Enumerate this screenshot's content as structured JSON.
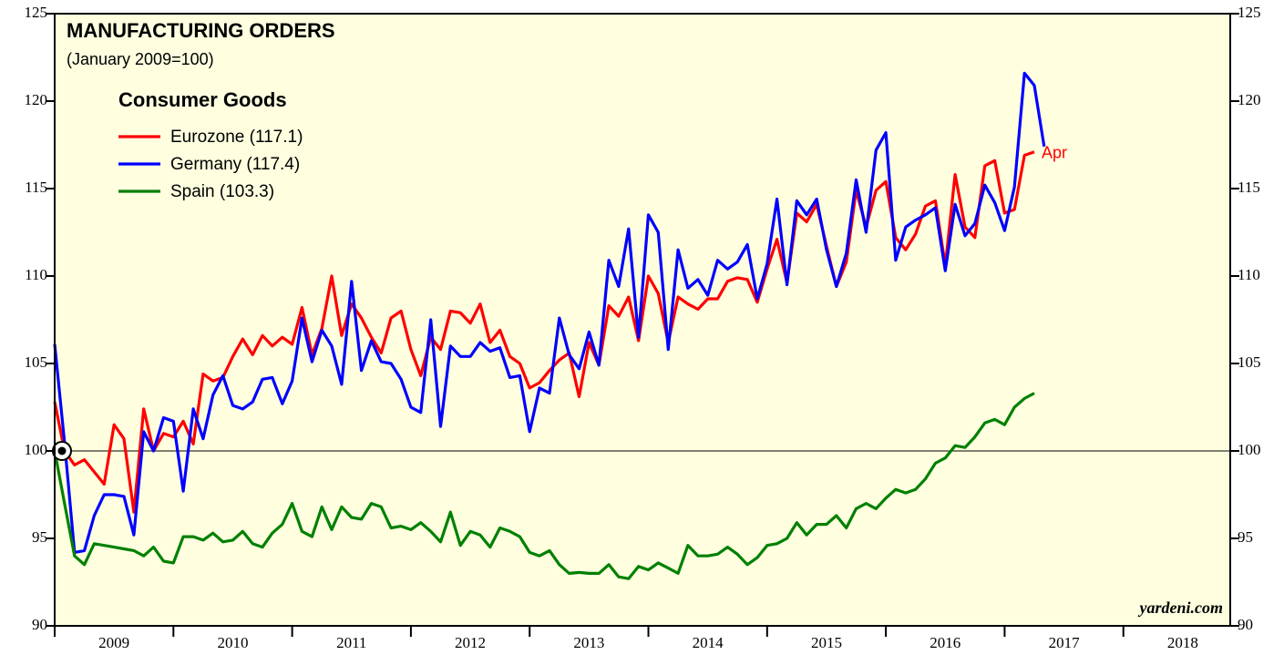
{
  "chart_data": {
    "type": "line",
    "title": "MANUFACTURING ORDERS",
    "subtitle": "(January 2009=100)",
    "legend_title": "Consumer Goods",
    "annotation": "Apr",
    "source": "yardeni.com",
    "reference_line": 100,
    "x": [
      2009,
      2009.083,
      2009.167,
      2009.25,
      2009.333,
      2009.417,
      2009.5,
      2009.583,
      2009.667,
      2009.75,
      2009.833,
      2009.917,
      2010,
      2010.083,
      2010.167,
      2010.25,
      2010.333,
      2010.417,
      2010.5,
      2010.583,
      2010.667,
      2010.75,
      2010.833,
      2010.917,
      2011,
      2011.083,
      2011.167,
      2011.25,
      2011.333,
      2011.417,
      2011.5,
      2011.583,
      2011.667,
      2011.75,
      2011.833,
      2011.917,
      2012,
      2012.083,
      2012.167,
      2012.25,
      2012.333,
      2012.417,
      2012.5,
      2012.583,
      2012.667,
      2012.75,
      2012.833,
      2012.917,
      2013,
      2013.083,
      2013.167,
      2013.25,
      2013.333,
      2013.417,
      2013.5,
      2013.583,
      2013.667,
      2013.75,
      2013.833,
      2013.917,
      2014,
      2014.083,
      2014.167,
      2014.25,
      2014.333,
      2014.417,
      2014.5,
      2014.583,
      2014.667,
      2014.75,
      2014.833,
      2014.917,
      2015,
      2015.083,
      2015.167,
      2015.25,
      2015.333,
      2015.417,
      2015.5,
      2015.583,
      2015.667,
      2015.75,
      2015.833,
      2015.917,
      2016,
      2016.083,
      2016.167,
      2016.25,
      2016.333,
      2016.417,
      2016.5,
      2016.583,
      2016.667,
      2016.75,
      2016.833,
      2016.917,
      2017,
      2017.083,
      2017.167,
      2017.25,
      2017.333
    ],
    "series": [
      {
        "name": "Eurozone (117.1)",
        "color": "#ff0000",
        "values": [
          102.8,
          100.0,
          99.2,
          99.5,
          98.8,
          98.1,
          101.5,
          100.7,
          96.5,
          102.4,
          100.0,
          101.0,
          100.8,
          101.7,
          100.4,
          104.4,
          104.0,
          104.2,
          105.4,
          106.4,
          105.5,
          106.6,
          106.0,
          106.5,
          106.1,
          108.2,
          105.5,
          107.0,
          110.0,
          106.6,
          108.4,
          107.6,
          106.5,
          105.6,
          107.6,
          108.0,
          105.8,
          104.3,
          106.5,
          105.8,
          108.0,
          107.9,
          107.3,
          108.4,
          106.2,
          106.9,
          105.4,
          105.0,
          103.6,
          103.9,
          104.6,
          105.2,
          105.6,
          103.1,
          106.2,
          104.9,
          108.3,
          107.7,
          108.8,
          106.3,
          110.0,
          109.0,
          106.2,
          108.8,
          108.4,
          108.1,
          108.7,
          108.7,
          109.7,
          109.9,
          109.8,
          108.5,
          110.4,
          112.1,
          109.6,
          113.6,
          113.1,
          114.1,
          111.7,
          109.4,
          110.8,
          114.9,
          112.8,
          114.9,
          115.4,
          112.2,
          111.5,
          112.4,
          114.0,
          114.3,
          110.6,
          115.8,
          112.8,
          112.2,
          116.3,
          116.6,
          113.6,
          113.8,
          116.9,
          117.1,
          null
        ]
      },
      {
        "name": "Germany (117.4)",
        "color": "#0000ff",
        "values": [
          106.1,
          100.5,
          94.2,
          94.3,
          96.3,
          97.5,
          97.5,
          97.4,
          95.2,
          101.1,
          100.0,
          101.9,
          101.7,
          97.7,
          102.4,
          100.7,
          103.2,
          104.3,
          102.6,
          102.4,
          102.8,
          104.1,
          104.2,
          102.7,
          104.0,
          107.6,
          105.1,
          106.9,
          106.0,
          103.8,
          109.7,
          104.6,
          106.3,
          105.1,
          105.0,
          104.1,
          102.5,
          102.2,
          107.5,
          101.4,
          106.0,
          105.4,
          105.4,
          106.2,
          105.7,
          105.9,
          104.2,
          104.3,
          101.1,
          103.6,
          103.3,
          107.6,
          105.5,
          104.7,
          106.8,
          104.9,
          110.9,
          109.4,
          112.7,
          106.5,
          113.5,
          112.5,
          105.8,
          111.5,
          109.3,
          109.8,
          108.9,
          110.9,
          110.4,
          110.8,
          111.8,
          108.7,
          110.7,
          114.4,
          109.5,
          114.3,
          113.5,
          114.4,
          111.5,
          109.4,
          111.3,
          115.5,
          112.5,
          117.2,
          118.2,
          110.9,
          112.8,
          113.2,
          113.5,
          113.9,
          110.3,
          114.1,
          112.3,
          113.0,
          115.2,
          114.2,
          112.6,
          115.1,
          121.6,
          120.9,
          117.4
        ]
      },
      {
        "name": "Spain (103.3)",
        "color": "#008000",
        "values": [
          100.0,
          97.0,
          94.0,
          93.5,
          94.7,
          94.6,
          94.5,
          94.4,
          94.3,
          94.0,
          94.5,
          93.7,
          93.6,
          95.1,
          95.1,
          94.9,
          95.3,
          94.8,
          94.9,
          95.4,
          94.7,
          94.5,
          95.3,
          95.8,
          97.0,
          95.4,
          95.1,
          96.8,
          95.5,
          96.8,
          96.2,
          96.1,
          97.0,
          96.8,
          95.6,
          95.7,
          95.5,
          95.9,
          95.4,
          94.8,
          96.5,
          94.6,
          95.4,
          95.2,
          94.5,
          95.6,
          95.4,
          95.1,
          94.2,
          94.0,
          94.3,
          93.5,
          93.0,
          93.05,
          93.0,
          93.0,
          93.5,
          92.8,
          92.7,
          93.4,
          93.2,
          93.6,
          93.3,
          93.0,
          94.6,
          94.0,
          94.0,
          94.1,
          94.5,
          94.1,
          93.5,
          93.9,
          94.6,
          94.7,
          95.0,
          95.9,
          95.2,
          95.8,
          95.8,
          96.3,
          95.6,
          96.7,
          97.0,
          96.7,
          97.3,
          97.8,
          97.6,
          97.8,
          98.4,
          99.3,
          99.6,
          100.3,
          100.2,
          100.8,
          101.6,
          101.8,
          101.5,
          102.5,
          103.0,
          103.3,
          null
        ]
      }
    ],
    "xlim": [
      2009,
      2018.9
    ],
    "xticks": [
      2009,
      2010,
      2011,
      2012,
      2013,
      2014,
      2015,
      2016,
      2017,
      2018
    ],
    "ylim": [
      90,
      125
    ],
    "yticks": [
      90,
      95,
      100,
      105,
      110,
      115,
      120,
      125
    ],
    "background": "#ffffe0"
  }
}
